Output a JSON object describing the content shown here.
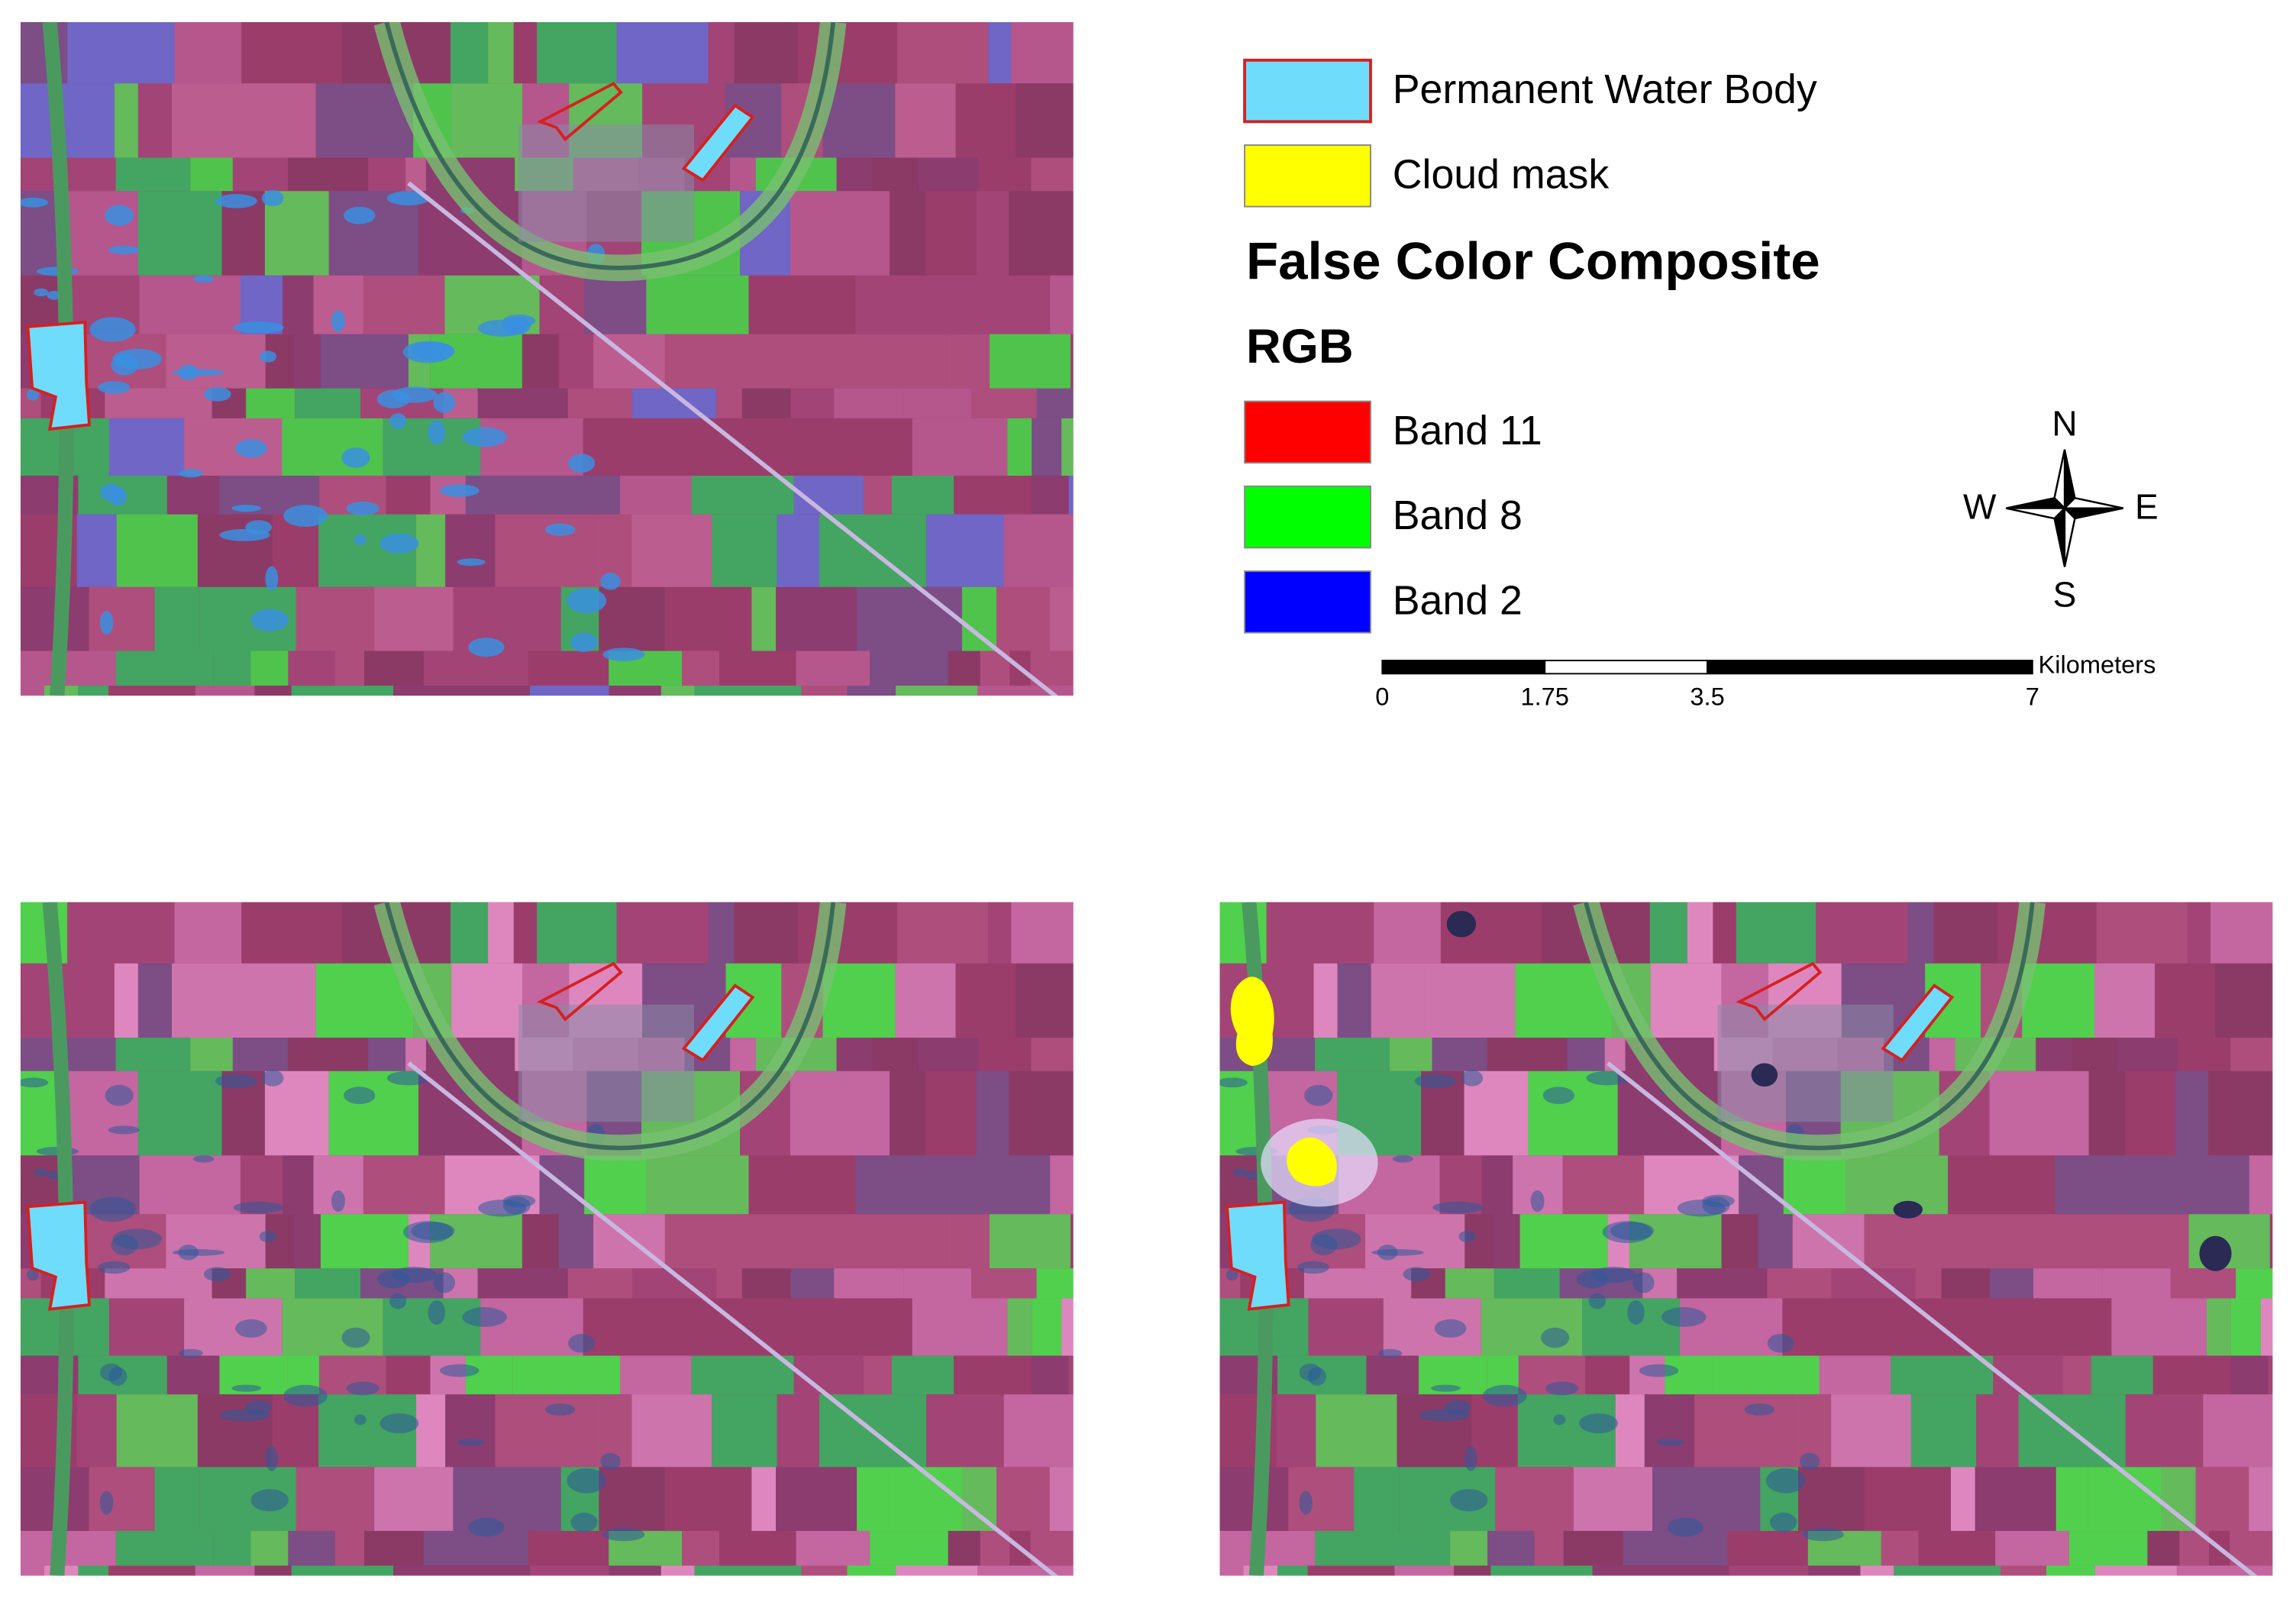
{
  "legend": {
    "items": [
      {
        "label": "Permanent Water Body",
        "color": "#6fdcfb",
        "stroke": "#d62020"
      },
      {
        "label": "Cloud mask",
        "color": "#ffff00",
        "stroke": "none"
      }
    ],
    "heading": "False Color Composite",
    "subheading": "RGB",
    "bands": [
      {
        "label": "Band 11",
        "color": "#ff0000"
      },
      {
        "label": "Band 8",
        "color": "#00ff00"
      },
      {
        "label": "Band 2",
        "color": "#0000ff"
      }
    ]
  },
  "compass": {
    "north": "N",
    "east": "E",
    "south": "S",
    "west": "W"
  },
  "scale_bar": {
    "ticks": [
      0,
      1.75,
      3.5,
      7
    ],
    "unit": "Kilometers"
  }
}
